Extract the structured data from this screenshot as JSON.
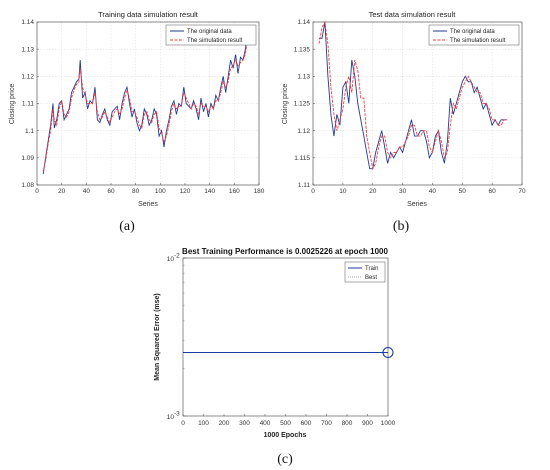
{
  "colors": {
    "original": "#1f3a93",
    "simulation": "#ff3b3b",
    "train": "#1f3aa5",
    "grid": "#d9d9d9"
  },
  "panels": [
    {
      "caption": "(a)",
      "chart_data": {
        "type": "line",
        "title": "Training data simulation result",
        "xlabel": "Series",
        "ylabel": "Closing price",
        "xlim": [
          0,
          180
        ],
        "ylim": [
          1.08,
          1.14
        ],
        "xticks": [
          0,
          20,
          40,
          60,
          80,
          100,
          120,
          140,
          160,
          180
        ],
        "yticks": [
          1.08,
          1.09,
          1.1,
          1.11,
          1.12,
          1.13,
          1.14
        ],
        "grid": true,
        "legend_position": "top-right",
        "series": [
          {
            "name": "The original data",
            "x": [
              5,
              7,
              9,
              11,
              13,
              14,
              16,
              18,
              20,
              22,
              24,
              26,
              28,
              30,
              32,
              34,
              35,
              37,
              39,
              41,
              43,
              45,
              47,
              49,
              51,
              53,
              55,
              57,
              59,
              61,
              63,
              65,
              67,
              69,
              71,
              73,
              75,
              77,
              79,
              81,
              83,
              85,
              87,
              89,
              91,
              93,
              95,
              97,
              99,
              101,
              103,
              105,
              107,
              109,
              111,
              113,
              115,
              117,
              119,
              121,
              123,
              125,
              127,
              129,
              131,
              133,
              135,
              137,
              139,
              141,
              143,
              145,
              147,
              149,
              151,
              153,
              155,
              157,
              159,
              161,
              163,
              165,
              167,
              169,
              171
            ],
            "y": [
              1.084,
              1.09,
              1.096,
              1.102,
              1.11,
              1.101,
              1.104,
              1.11,
              1.111,
              1.104,
              1.106,
              1.108,
              1.114,
              1.116,
              1.118,
              1.119,
              1.126,
              1.112,
              1.114,
              1.108,
              1.111,
              1.11,
              1.116,
              1.104,
              1.103,
              1.106,
              1.108,
              1.104,
              1.102,
              1.107,
              1.108,
              1.109,
              1.104,
              1.11,
              1.114,
              1.116,
              1.11,
              1.105,
              1.108,
              1.103,
              1.1,
              1.102,
              1.108,
              1.106,
              1.102,
              1.104,
              1.108,
              1.106,
              1.098,
              1.1,
              1.094,
              1.1,
              1.104,
              1.109,
              1.111,
              1.106,
              1.11,
              1.109,
              1.116,
              1.11,
              1.109,
              1.108,
              1.111,
              1.108,
              1.104,
              1.112,
              1.107,
              1.11,
              1.105,
              1.11,
              1.108,
              1.113,
              1.111,
              1.116,
              1.12,
              1.114,
              1.12,
              1.126,
              1.123,
              1.128,
              1.121,
              1.127,
              1.126,
              1.13,
              1.138
            ]
          },
          {
            "name": "The simulation result",
            "x": [
              5,
              7,
              9,
              11,
              13,
              14,
              16,
              18,
              20,
              22,
              24,
              26,
              28,
              30,
              32,
              34,
              35,
              37,
              39,
              41,
              43,
              45,
              47,
              49,
              51,
              53,
              55,
              57,
              59,
              61,
              63,
              65,
              67,
              69,
              71,
              73,
              75,
              77,
              79,
              81,
              83,
              85,
              87,
              89,
              91,
              93,
              95,
              97,
              99,
              101,
              103,
              105,
              107,
              109,
              111,
              113,
              115,
              117,
              119,
              121,
              123,
              125,
              127,
              129,
              131,
              133,
              135,
              137,
              139,
              141,
              143,
              145,
              147,
              149,
              151,
              153,
              155,
              157,
              159,
              161,
              163,
              165,
              167,
              169,
              171
            ],
            "y": [
              1.085,
              1.089,
              1.095,
              1.1,
              1.108,
              1.104,
              1.102,
              1.108,
              1.111,
              1.106,
              1.105,
              1.107,
              1.112,
              1.115,
              1.117,
              1.118,
              1.123,
              1.116,
              1.113,
              1.11,
              1.11,
              1.11,
              1.114,
              1.107,
              1.104,
              1.105,
              1.107,
              1.105,
              1.103,
              1.105,
              1.107,
              1.108,
              1.106,
              1.108,
              1.112,
              1.115,
              1.112,
              1.107,
              1.107,
              1.105,
              1.102,
              1.101,
              1.106,
              1.107,
              1.104,
              1.103,
              1.106,
              1.107,
              1.101,
              1.099,
              1.096,
              1.098,
              1.102,
              1.107,
              1.11,
              1.108,
              1.109,
              1.109,
              1.114,
              1.112,
              1.11,
              1.108,
              1.11,
              1.109,
              1.106,
              1.11,
              1.109,
              1.109,
              1.107,
              1.109,
              1.108,
              1.111,
              1.111,
              1.114,
              1.118,
              1.116,
              1.118,
              1.123,
              1.124,
              1.126,
              1.124,
              1.125,
              1.126,
              1.128,
              1.135
            ]
          }
        ]
      }
    },
    {
      "caption": "(b)",
      "chart_data": {
        "type": "line",
        "title": "Test data simulation result",
        "xlabel": "Series",
        "ylabel": "Closing price",
        "xlim": [
          0,
          70
        ],
        "ylim": [
          1.11,
          1.14
        ],
        "xticks": [
          0,
          10,
          20,
          30,
          40,
          50,
          60,
          70
        ],
        "yticks": [
          1.11,
          1.115,
          1.12,
          1.125,
          1.13,
          1.135,
          1.14
        ],
        "grid": true,
        "legend_position": "top-right",
        "series": [
          {
            "name": "The original data",
            "x": [
              2,
              3,
              4,
              5,
              6,
              7,
              8,
              9,
              10,
              11,
              12,
              13,
              14,
              15,
              16,
              17,
              18,
              19,
              20,
              21,
              22,
              23,
              24,
              25,
              26,
              27,
              28,
              29,
              30,
              31,
              32,
              33,
              34,
              35,
              36,
              37,
              38,
              39,
              40,
              41,
              42,
              43,
              44,
              45,
              46,
              47,
              48,
              49,
              50,
              51,
              52,
              53,
              54,
              55,
              56,
              57,
              58,
              59,
              60,
              61,
              62,
              63,
              64,
              65
            ],
            "y": [
              1.137,
              1.137,
              1.14,
              1.13,
              1.123,
              1.119,
              1.123,
              1.121,
              1.128,
              1.129,
              1.125,
              1.133,
              1.13,
              1.125,
              1.122,
              1.119,
              1.116,
              1.113,
              1.113,
              1.116,
              1.118,
              1.12,
              1.117,
              1.114,
              1.116,
              1.115,
              1.116,
              1.117,
              1.116,
              1.118,
              1.12,
              1.122,
              1.119,
              1.119,
              1.12,
              1.12,
              1.118,
              1.115,
              1.116,
              1.119,
              1.12,
              1.116,
              1.114,
              1.118,
              1.126,
              1.123,
              1.125,
              1.127,
              1.129,
              1.13,
              1.129,
              1.129,
              1.127,
              1.128,
              1.126,
              1.124,
              1.125,
              1.123,
              1.121,
              1.122,
              1.121,
              1.122,
              1.122,
              1.122
            ]
          },
          {
            "name": "The simulation result",
            "x": [
              2,
              3,
              4,
              5,
              6,
              7,
              8,
              9,
              10,
              11,
              12,
              13,
              14,
              15,
              16,
              17,
              18,
              19,
              20,
              21,
              22,
              23,
              24,
              25,
              26,
              27,
              28,
              29,
              30,
              31,
              32,
              33,
              34,
              35,
              36,
              37,
              38,
              39,
              40,
              41,
              42,
              43,
              44,
              45,
              46,
              47,
              48,
              49,
              50,
              51,
              52,
              53,
              54,
              55,
              56,
              57,
              58,
              59,
              60,
              61,
              62,
              63,
              64,
              65
            ],
            "y": [
              1.136,
              1.139,
              1.14,
              1.136,
              1.128,
              1.123,
              1.12,
              1.122,
              1.124,
              1.128,
              1.13,
              1.127,
              1.133,
              1.131,
              1.126,
              1.126,
              1.119,
              1.116,
              1.113,
              1.114,
              1.117,
              1.119,
              1.119,
              1.116,
              1.115,
              1.116,
              1.116,
              1.117,
              1.117,
              1.118,
              1.119,
              1.121,
              1.121,
              1.119,
              1.119,
              1.12,
              1.12,
              1.117,
              1.116,
              1.118,
              1.12,
              1.118,
              1.115,
              1.116,
              1.121,
              1.125,
              1.124,
              1.126,
              1.128,
              1.129,
              1.13,
              1.129,
              1.128,
              1.127,
              1.127,
              1.125,
              1.125,
              1.124,
              1.122,
              1.122,
              1.121,
              1.121,
              1.122,
              1.122
            ]
          }
        ]
      }
    },
    {
      "caption": "(c)",
      "chart_data": {
        "type": "line",
        "title": "Best Training Performance is 0.0025226 at epoch 1000",
        "xlabel": "1000 Epochs",
        "ylabel": "Mean Squared Error  (mse)",
        "xlim": [
          0,
          1000
        ],
        "ylim": [
          0.001,
          0.01
        ],
        "yscale": "log",
        "xticks": [
          0,
          100,
          200,
          300,
          400,
          500,
          600,
          700,
          800,
          900,
          1000
        ],
        "yticks": [
          0.001,
          0.01
        ],
        "ytick_labels": [
          [
            "10",
            "-3"
          ],
          [
            "10",
            "-2"
          ]
        ],
        "grid": false,
        "legend_position": "top-right",
        "series": [
          {
            "name": "Train",
            "x": [
              0,
              1000
            ],
            "y": [
              0.0025226,
              0.0025226
            ]
          },
          {
            "name": "Best",
            "x": [
              1000
            ],
            "y": [
              0.0025226
            ]
          }
        ],
        "best_line_x": 1000
      }
    }
  ]
}
